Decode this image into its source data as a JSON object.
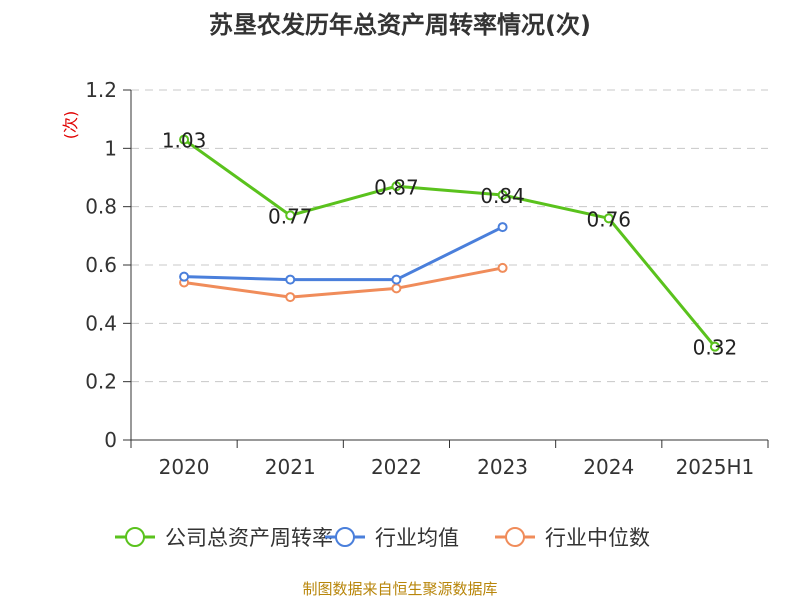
{
  "chart_data": {
    "type": "line",
    "title": "苏垦农发历年总资产周转率情况(次)",
    "y_unit": "(次)",
    "categories": [
      "2020",
      "2021",
      "2022",
      "2023",
      "2024",
      "2025H1"
    ],
    "ylim": [
      0,
      1.2
    ],
    "yticks": [
      0,
      0.2,
      0.4,
      0.6,
      0.8,
      1,
      1.2
    ],
    "ytick_labels": [
      "0",
      "0.2",
      "0.4",
      "0.6",
      "0.8",
      "1",
      "1.2"
    ],
    "grid": true,
    "legend_position": "bottom",
    "series": [
      {
        "name": "公司总资产周转率",
        "color": "#5ac21d",
        "values": [
          1.03,
          0.77,
          0.87,
          0.84,
          0.76,
          0.32
        ],
        "labels": [
          "1.03",
          "0.77",
          "0.87",
          "0.84",
          "0.76",
          "0.32"
        ]
      },
      {
        "name": "行业均值",
        "color": "#4a7fdb",
        "values": [
          0.56,
          0.55,
          0.55,
          0.73,
          null,
          null
        ]
      },
      {
        "name": "行业中位数",
        "color": "#f08c5a",
        "values": [
          0.54,
          0.49,
          0.52,
          0.59,
          null,
          null
        ]
      }
    ]
  },
  "source_note": "制图数据来自恒生聚源数据库"
}
